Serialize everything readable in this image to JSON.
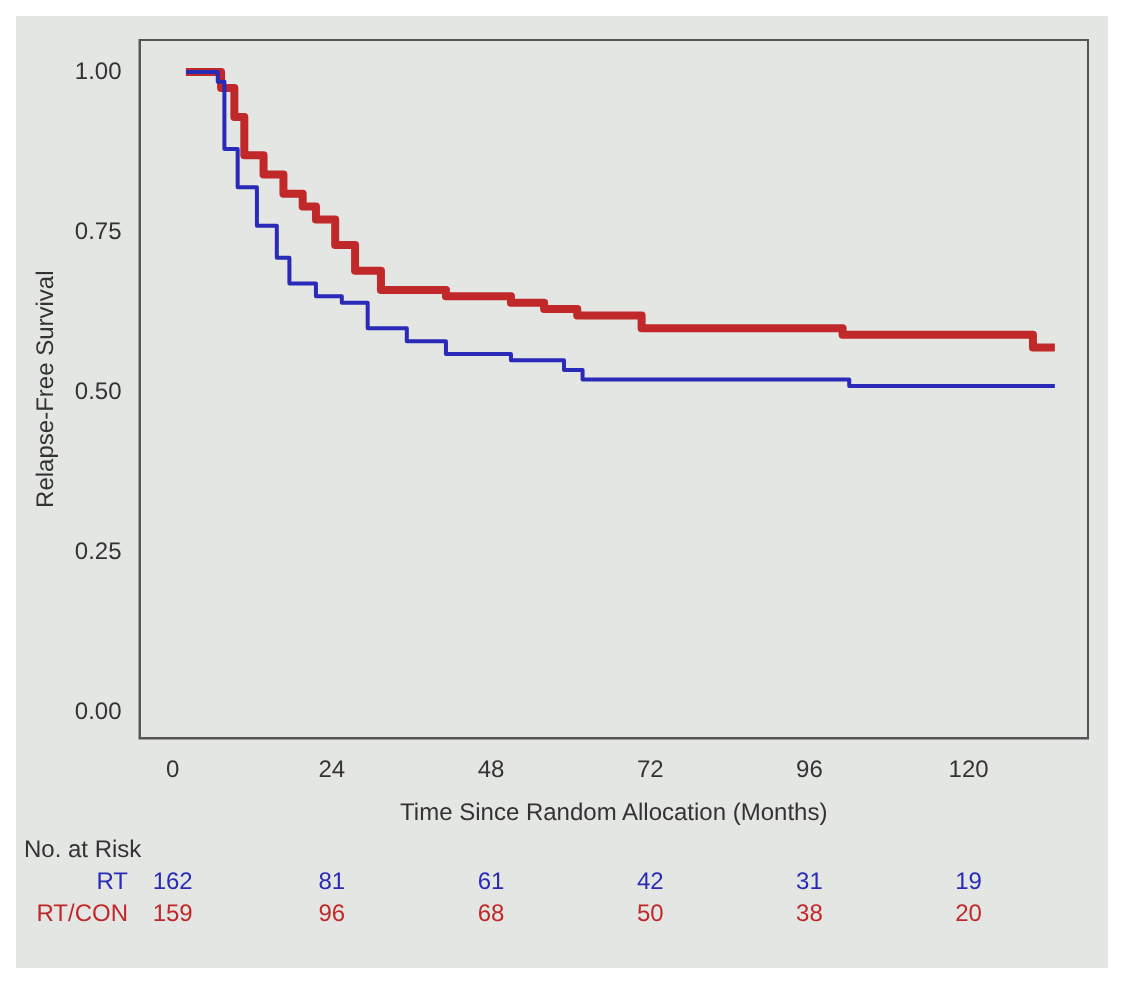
{
  "chart_data": {
    "type": "step",
    "xlabel": "Time Since Random Allocation (Months)",
    "ylabel": "Relapse-Free Survival",
    "xlim": [
      -5,
      138
    ],
    "ylim": [
      -0.04,
      1.05
    ],
    "xticks": [
      0,
      24,
      48,
      72,
      96,
      120
    ],
    "yticks": [
      {
        "value": 0,
        "label": "0.00"
      },
      {
        "value": 0.25,
        "label": "0.25"
      },
      {
        "value": 0.5,
        "label": "0.50"
      },
      {
        "value": 0.75,
        "label": "0.75"
      },
      {
        "value": 1,
        "label": "1.00"
      }
    ],
    "grid": false,
    "legend": false,
    "marker": "none",
    "line_style": "solid",
    "series": [
      {
        "name": "RT",
        "color": "#2a2ab8",
        "x": [
          2,
          6.8,
          7.8,
          9.8,
          12.7,
          15.7,
          17.6,
          21.6,
          25.5,
          29.4,
          35.3,
          41.2,
          51,
          59,
          61.8,
          102,
          133
        ],
        "values": [
          1,
          0.985,
          0.88,
          0.82,
          0.76,
          0.71,
          0.67,
          0.65,
          0.64,
          0.6,
          0.58,
          0.56,
          0.55,
          0.535,
          0.52,
          0.51,
          0.51
        ]
      },
      {
        "name": "RT/CON",
        "color": "#c0282a",
        "x": [
          2,
          7.3,
          9.3,
          10.8,
          13.7,
          16.7,
          19.6,
          21.6,
          24.5,
          27.5,
          31.4,
          41.2,
          51,
          56,
          61,
          70.7,
          101,
          129.7,
          133
        ],
        "values": [
          1,
          0.975,
          0.93,
          0.87,
          0.84,
          0.81,
          0.79,
          0.77,
          0.73,
          0.69,
          0.66,
          0.65,
          0.64,
          0.63,
          0.62,
          0.6,
          0.59,
          0.57,
          0.57
        ]
      }
    ],
    "annotations": [
      "No. at Risk",
      "162",
      "81",
      "61",
      "42",
      "31",
      "19",
      "159",
      "96",
      "68",
      "50",
      "38",
      "20"
    ]
  }
}
